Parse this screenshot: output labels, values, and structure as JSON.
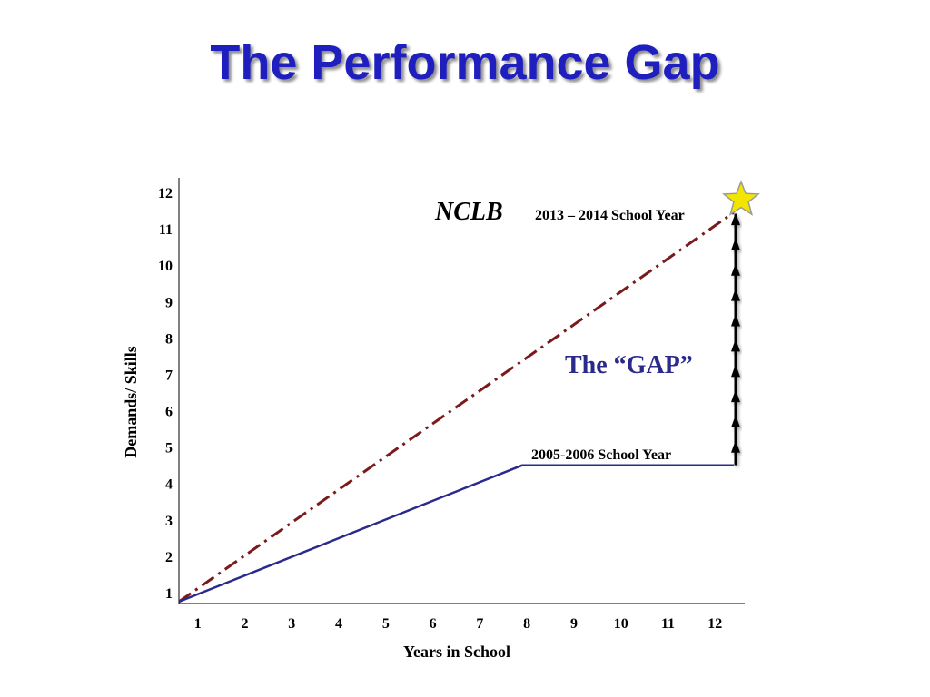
{
  "slide": {
    "title": "The Performance Gap"
  },
  "colors": {
    "title": "#1f1fbf",
    "student_line": "#2a2a8c",
    "nclb_line": "#7a1a1a",
    "gap_arrows": "#000000",
    "star_fill": "#f2e600",
    "star_stroke": "#9a9a9a"
  },
  "chart_data": {
    "type": "line",
    "xlabel": "Years in School",
    "ylabel": "Demands/ Skills",
    "xlim": [
      0.6,
      12.4
    ],
    "ylim": [
      0.7,
      12.2
    ],
    "x_ticks": [
      1,
      2,
      3,
      4,
      5,
      6,
      7,
      8,
      9,
      10,
      11,
      12
    ],
    "y_ticks": [
      1,
      2,
      3,
      4,
      5,
      6,
      7,
      8,
      9,
      10,
      11,
      12
    ],
    "grid": false,
    "series": [
      {
        "id": "nclb",
        "style": "dash-dot",
        "x": [
          0.6,
          12.4
        ],
        "y": [
          0.75,
          11.45
        ]
      },
      {
        "id": "student",
        "style": "solid",
        "x": [
          0.6,
          7.9,
          12.4
        ],
        "y": [
          0.75,
          4.5,
          4.5
        ]
      }
    ],
    "annotations": {
      "nclb_label": "NCLB",
      "nclb_year": "2013 – 2014 School Year",
      "current_year": "2005-2006 School Year",
      "gap_label": "The “GAP”"
    },
    "gap": {
      "x": 12.4,
      "y_from": 4.5,
      "y_to": 11.45,
      "arrow_count": 10
    }
  }
}
